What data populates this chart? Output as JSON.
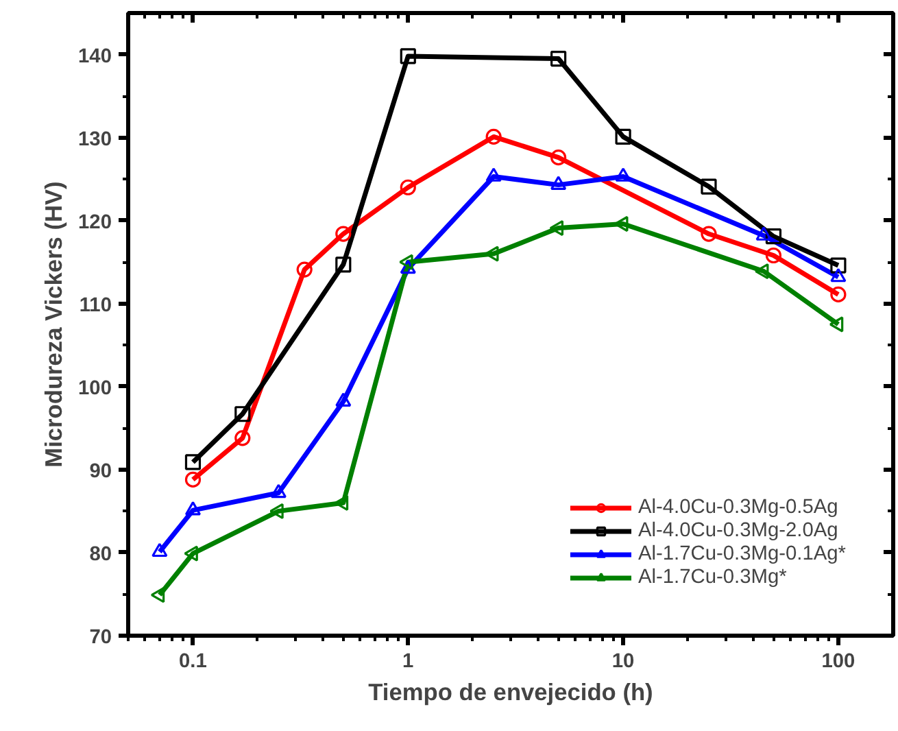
{
  "chart_data": {
    "type": "line",
    "xlabel": "Tiempo de envejecido (h)",
    "ylabel": "Microdureza Vickers (HV)",
    "log": "x",
    "xlim": [
      0.05,
      180
    ],
    "xticks": [
      0.1,
      1,
      10,
      100
    ],
    "ylim": [
      70,
      145
    ],
    "yticks": [
      70,
      80,
      90,
      100,
      110,
      120,
      130,
      140
    ],
    "grid": false,
    "legend": "bottom right",
    "series": [
      {
        "name": "Al-4.0Cu-0.3Mg-0.5Ag",
        "color": "#ff0000",
        "marker": "circle",
        "x": [
          0.1,
          0.17,
          0.33,
          0.5,
          1,
          2.5,
          5,
          25,
          50,
          100
        ],
        "values": [
          88.8,
          93.8,
          114.1,
          118.4,
          124.0,
          130.1,
          127.6,
          118.4,
          115.8,
          111.1
        ]
      },
      {
        "name": "Al-4.0Cu-0.3Mg-2.0Ag",
        "color": "#000000",
        "marker": "square",
        "x": [
          0.1,
          0.17,
          0.5,
          1,
          5,
          10,
          25,
          50,
          100
        ],
        "values": [
          90.9,
          96.7,
          114.7,
          139.8,
          139.5,
          130.1,
          124.1,
          118.1,
          114.6
        ]
      },
      {
        "name": "Al-1.7Cu-0.3Mg-0.1Ag*",
        "color": "#0000ff",
        "marker": "triangle",
        "x": [
          0.07,
          0.1,
          0.25,
          0.5,
          1,
          2.5,
          5,
          10,
          45,
          100
        ],
        "values": [
          80.1,
          85.1,
          87.2,
          98.2,
          114.2,
          125.3,
          124.3,
          125.3,
          118.2,
          113.2
        ]
      },
      {
        "name": "Al-1.7Cu-0.3Mg*",
        "color": "#008000",
        "marker": "triangle-left",
        "x": [
          0.07,
          0.1,
          0.25,
          0.5,
          1,
          2.5,
          5,
          10,
          45,
          100
        ],
        "values": [
          74.9,
          79.9,
          85.0,
          86.0,
          115.0,
          116.0,
          119.1,
          119.6,
          113.9,
          107.5
        ]
      }
    ]
  }
}
